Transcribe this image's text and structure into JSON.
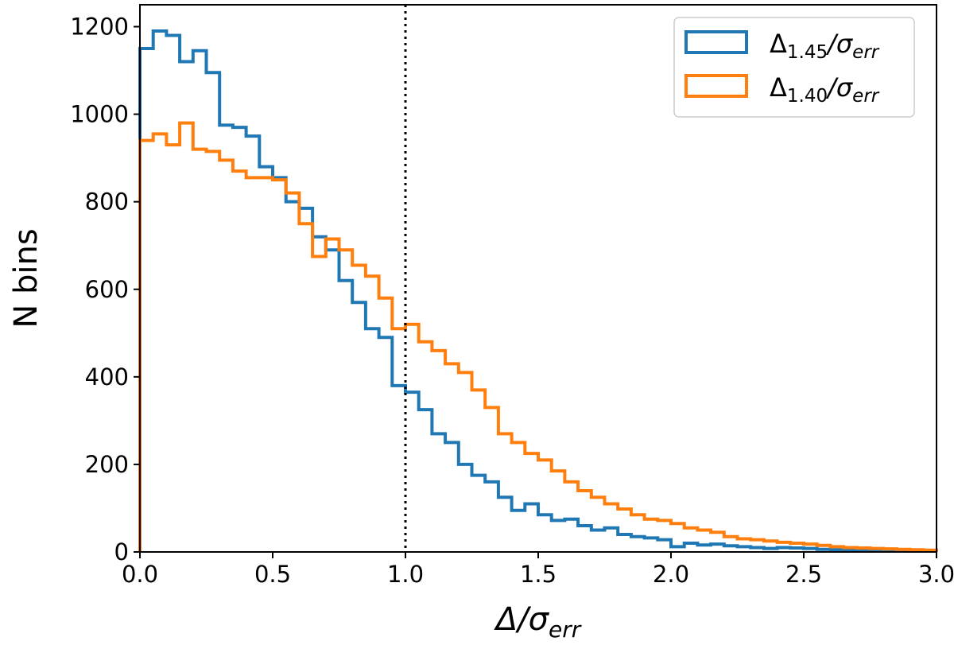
{
  "chart_data": {
    "type": "histogram-step",
    "title": "",
    "xlabel": "Δ/σerr",
    "xlabel_parts": {
      "base": "Δ/σ",
      "sub": "err"
    },
    "ylabel": "N bins",
    "xlim": [
      0,
      3
    ],
    "ylim": [
      0,
      1250
    ],
    "x_ticks": [
      0.0,
      0.5,
      1.0,
      1.5,
      2.0,
      2.5,
      3.0
    ],
    "x_tick_labels": [
      "0.0",
      "0.5",
      "1.0",
      "1.5",
      "2.0",
      "2.5",
      "3.0"
    ],
    "y_ticks": [
      0,
      200,
      400,
      600,
      800,
      1000,
      1200
    ],
    "y_tick_labels": [
      "0",
      "200",
      "400",
      "600",
      "800",
      "1000",
      "1200"
    ],
    "bin_width": 0.05,
    "reference_line": {
      "x": 1.0,
      "style": "dotted",
      "color": "#000000"
    },
    "legend": {
      "position": "top-right"
    },
    "series": [
      {
        "name": "Δ1.45/σerr",
        "label_parts": {
          "delta": "Δ",
          "sub": "1.45",
          "sigma": "/σ",
          "sigma_sub": "err"
        },
        "color": "#1f77b4",
        "values": [
          1150,
          1190,
          1180,
          1120,
          1145,
          1095,
          975,
          970,
          950,
          880,
          855,
          800,
          785,
          720,
          690,
          620,
          570,
          510,
          490,
          380,
          365,
          325,
          270,
          250,
          200,
          175,
          160,
          125,
          95,
          110,
          85,
          72,
          75,
          60,
          50,
          55,
          40,
          35,
          32,
          28,
          12,
          20,
          16,
          18,
          14,
          12,
          10,
          8,
          10,
          9,
          8,
          6,
          5,
          4,
          4,
          3,
          3,
          2,
          2,
          2
        ]
      },
      {
        "name": "Δ1.40/σerr",
        "label_parts": {
          "delta": "Δ",
          "sub": "1.40",
          "sigma": "/σ",
          "sigma_sub": "err"
        },
        "color": "#ff7f0e",
        "values": [
          940,
          955,
          930,
          980,
          920,
          915,
          895,
          870,
          855,
          855,
          850,
          820,
          750,
          675,
          715,
          690,
          655,
          630,
          580,
          510,
          520,
          480,
          460,
          430,
          410,
          370,
          330,
          270,
          250,
          225,
          210,
          185,
          160,
          140,
          125,
          110,
          98,
          85,
          75,
          72,
          65,
          55,
          50,
          45,
          35,
          30,
          28,
          25,
          22,
          20,
          18,
          15,
          12,
          10,
          9,
          8,
          7,
          6,
          5,
          4
        ]
      }
    ]
  }
}
